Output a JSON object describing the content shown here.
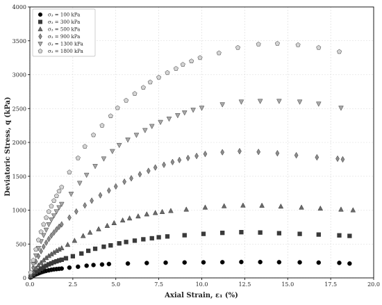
{
  "chart_data": {
    "type": "scatter",
    "xlabel": "Axial Strain, ε₁ (%)",
    "ylabel": "Deviatoric Stress, q (kPa)",
    "xlim": [
      0,
      20
    ],
    "ylim": [
      0,
      4000
    ],
    "xticks": [
      "0.0",
      "2.5",
      "5.0",
      "7.5",
      "10.0",
      "12.5",
      "15.0",
      "17.5",
      "20.0"
    ],
    "yticks": [
      "0",
      "500",
      "1000",
      "1500",
      "2000",
      "2500",
      "3000",
      "3500",
      "4000"
    ],
    "grid": true,
    "legend_position": "top-left",
    "series": [
      {
        "name": "σ₃ = 100 kPa",
        "marker": "circle",
        "color": "#000000",
        "points": [
          [
            0.05,
            8
          ],
          [
            0.15,
            25
          ],
          [
            0.25,
            40
          ],
          [
            0.35,
            52
          ],
          [
            0.45,
            62
          ],
          [
            0.55,
            72
          ],
          [
            0.65,
            82
          ],
          [
            0.75,
            90
          ],
          [
            0.85,
            98
          ],
          [
            0.95,
            104
          ],
          [
            1.1,
            112
          ],
          [
            1.25,
            120
          ],
          [
            1.4,
            126
          ],
          [
            1.55,
            130
          ],
          [
            1.7,
            134
          ],
          [
            1.85,
            138
          ],
          [
            2.3,
            152
          ],
          [
            2.8,
            165
          ],
          [
            3.3,
            180
          ],
          [
            3.7,
            190
          ],
          [
            4.2,
            198
          ],
          [
            4.6,
            205
          ],
          [
            5.7,
            212
          ],
          [
            6.8,
            220
          ],
          [
            7.9,
            225
          ],
          [
            9.0,
            228
          ],
          [
            10.1,
            230
          ],
          [
            11.2,
            232
          ],
          [
            12.3,
            235
          ],
          [
            13.4,
            234
          ],
          [
            14.5,
            232
          ],
          [
            15.7,
            230
          ],
          [
            16.8,
            226
          ],
          [
            18.0,
            222
          ],
          [
            18.6,
            212
          ]
        ]
      },
      {
        "name": "σ₃ = 300 kPa",
        "marker": "square",
        "color": "#3a3a3a",
        "points": [
          [
            0.05,
            15
          ],
          [
            0.2,
            55
          ],
          [
            0.35,
            85
          ],
          [
            0.5,
            110
          ],
          [
            0.65,
            135
          ],
          [
            0.8,
            160
          ],
          [
            0.95,
            180
          ],
          [
            1.1,
            200
          ],
          [
            1.25,
            215
          ],
          [
            1.4,
            232
          ],
          [
            1.55,
            245
          ],
          [
            1.7,
            258
          ],
          [
            1.85,
            268
          ],
          [
            2.1,
            290
          ],
          [
            2.5,
            320
          ],
          [
            3.0,
            360
          ],
          [
            3.4,
            400
          ],
          [
            3.8,
            430
          ],
          [
            4.3,
            460
          ],
          [
            4.7,
            480
          ],
          [
            5.2,
            510
          ],
          [
            5.6,
            530
          ],
          [
            6.1,
            550
          ],
          [
            6.6,
            570
          ],
          [
            7.1,
            585
          ],
          [
            7.5,
            600
          ],
          [
            8.0,
            612
          ],
          [
            9.0,
            630
          ],
          [
            10.1,
            650
          ],
          [
            11.2,
            665
          ],
          [
            12.3,
            675
          ],
          [
            13.4,
            670
          ],
          [
            14.5,
            660
          ],
          [
            15.7,
            650
          ],
          [
            16.8,
            640
          ],
          [
            18.0,
            628
          ],
          [
            18.6,
            620
          ]
        ]
      },
      {
        "name": "σ₃ = 500 kPa",
        "marker": "triangle-up",
        "color": "#6b6b6b",
        "points": [
          [
            0.05,
            25
          ],
          [
            0.2,
            90
          ],
          [
            0.35,
            140
          ],
          [
            0.5,
            185
          ],
          [
            0.65,
            225
          ],
          [
            0.8,
            260
          ],
          [
            0.95,
            295
          ],
          [
            1.1,
            325
          ],
          [
            1.25,
            350
          ],
          [
            1.4,
            375
          ],
          [
            1.55,
            400
          ],
          [
            1.7,
            420
          ],
          [
            1.85,
            440
          ],
          [
            2.2,
            490
          ],
          [
            2.6,
            550
          ],
          [
            3.1,
            620
          ],
          [
            3.5,
            670
          ],
          [
            4.0,
            720
          ],
          [
            4.5,
            770
          ],
          [
            4.9,
            810
          ],
          [
            5.4,
            850
          ],
          [
            5.8,
            880
          ],
          [
            6.3,
            910
          ],
          [
            6.8,
            940
          ],
          [
            7.3,
            960
          ],
          [
            7.7,
            975
          ],
          [
            8.2,
            990
          ],
          [
            9.1,
            1010
          ],
          [
            10.2,
            1040
          ],
          [
            11.3,
            1060
          ],
          [
            12.4,
            1070
          ],
          [
            13.5,
            1068
          ],
          [
            14.6,
            1055
          ],
          [
            15.8,
            1040
          ],
          [
            16.9,
            1025
          ],
          [
            18.1,
            1010
          ],
          [
            18.8,
            1000
          ]
        ]
      },
      {
        "name": "σ₃ = 900 kPa",
        "marker": "diamond",
        "color": "#8c8c8c",
        "points": [
          [
            0.05,
            45
          ],
          [
            0.2,
            150
          ],
          [
            0.35,
            240
          ],
          [
            0.5,
            320
          ],
          [
            0.65,
            395
          ],
          [
            0.8,
            460
          ],
          [
            0.95,
            520
          ],
          [
            1.1,
            575
          ],
          [
            1.25,
            625
          ],
          [
            1.4,
            670
          ],
          [
            1.55,
            715
          ],
          [
            1.7,
            755
          ],
          [
            1.85,
            790
          ],
          [
            2.3,
            890
          ],
          [
            2.7,
            980
          ],
          [
            3.2,
            1070
          ],
          [
            3.6,
            1140
          ],
          [
            4.1,
            1220
          ],
          [
            4.6,
            1290
          ],
          [
            5.0,
            1350
          ],
          [
            5.5,
            1420
          ],
          [
            5.9,
            1470
          ],
          [
            6.4,
            1530
          ],
          [
            6.9,
            1580
          ],
          [
            7.3,
            1630
          ],
          [
            7.8,
            1670
          ],
          [
            8.3,
            1710
          ],
          [
            8.7,
            1740
          ],
          [
            9.2,
            1770
          ],
          [
            9.7,
            1800
          ],
          [
            10.2,
            1830
          ],
          [
            11.2,
            1855
          ],
          [
            12.2,
            1870
          ],
          [
            13.3,
            1860
          ],
          [
            14.4,
            1840
          ],
          [
            15.5,
            1810
          ],
          [
            16.7,
            1780
          ],
          [
            17.9,
            1760
          ],
          [
            18.2,
            1750
          ]
        ]
      },
      {
        "name": "σ₃ = 1300 kPa",
        "marker": "triangle-down",
        "color": "#a8a8a8",
        "points": [
          [
            0.05,
            60
          ],
          [
            0.2,
            200
          ],
          [
            0.35,
            330
          ],
          [
            0.5,
            440
          ],
          [
            0.65,
            540
          ],
          [
            0.8,
            630
          ],
          [
            0.95,
            710
          ],
          [
            1.1,
            790
          ],
          [
            1.25,
            860
          ],
          [
            1.4,
            920
          ],
          [
            1.55,
            980
          ],
          [
            1.7,
            1040
          ],
          [
            1.85,
            1090
          ],
          [
            2.4,
            1240
          ],
          [
            2.9,
            1400
          ],
          [
            3.3,
            1520
          ],
          [
            3.8,
            1650
          ],
          [
            4.3,
            1760
          ],
          [
            4.8,
            1870
          ],
          [
            5.2,
            1960
          ],
          [
            5.7,
            2040
          ],
          [
            6.2,
            2110
          ],
          [
            6.7,
            2180
          ],
          [
            7.1,
            2240
          ],
          [
            7.6,
            2300
          ],
          [
            8.1,
            2350
          ],
          [
            8.6,
            2400
          ],
          [
            9.0,
            2440
          ],
          [
            9.5,
            2480
          ],
          [
            10.0,
            2510
          ],
          [
            11.2,
            2560
          ],
          [
            12.3,
            2600
          ],
          [
            13.4,
            2610
          ],
          [
            14.5,
            2610
          ],
          [
            15.7,
            2600
          ],
          [
            16.8,
            2570
          ],
          [
            18.1,
            2510
          ]
        ]
      },
      {
        "name": "σ₃ = 1800 kPa",
        "marker": "pentagon",
        "color": "#d4d4d4",
        "points": [
          [
            0.05,
            80
          ],
          [
            0.2,
            260
          ],
          [
            0.35,
            420
          ],
          [
            0.5,
            560
          ],
          [
            0.65,
            680
          ],
          [
            0.8,
            790
          ],
          [
            0.95,
            890
          ],
          [
            1.1,
            980
          ],
          [
            1.25,
            1060
          ],
          [
            1.4,
            1140
          ],
          [
            1.55,
            1210
          ],
          [
            1.7,
            1280
          ],
          [
            1.85,
            1340
          ],
          [
            2.3,
            1560
          ],
          [
            2.8,
            1770
          ],
          [
            3.2,
            1940
          ],
          [
            3.7,
            2110
          ],
          [
            4.2,
            2250
          ],
          [
            4.7,
            2390
          ],
          [
            5.1,
            2510
          ],
          [
            5.6,
            2620
          ],
          [
            6.1,
            2720
          ],
          [
            6.6,
            2810
          ],
          [
            7.0,
            2890
          ],
          [
            7.5,
            2960
          ],
          [
            8.0,
            3030
          ],
          [
            8.5,
            3090
          ],
          [
            8.9,
            3150
          ],
          [
            9.4,
            3200
          ],
          [
            9.9,
            3250
          ],
          [
            11.0,
            3320
          ],
          [
            12.1,
            3400
          ],
          [
            13.3,
            3450
          ],
          [
            14.4,
            3460
          ],
          [
            15.6,
            3440
          ],
          [
            16.8,
            3400
          ],
          [
            18.0,
            3340
          ]
        ]
      }
    ]
  }
}
